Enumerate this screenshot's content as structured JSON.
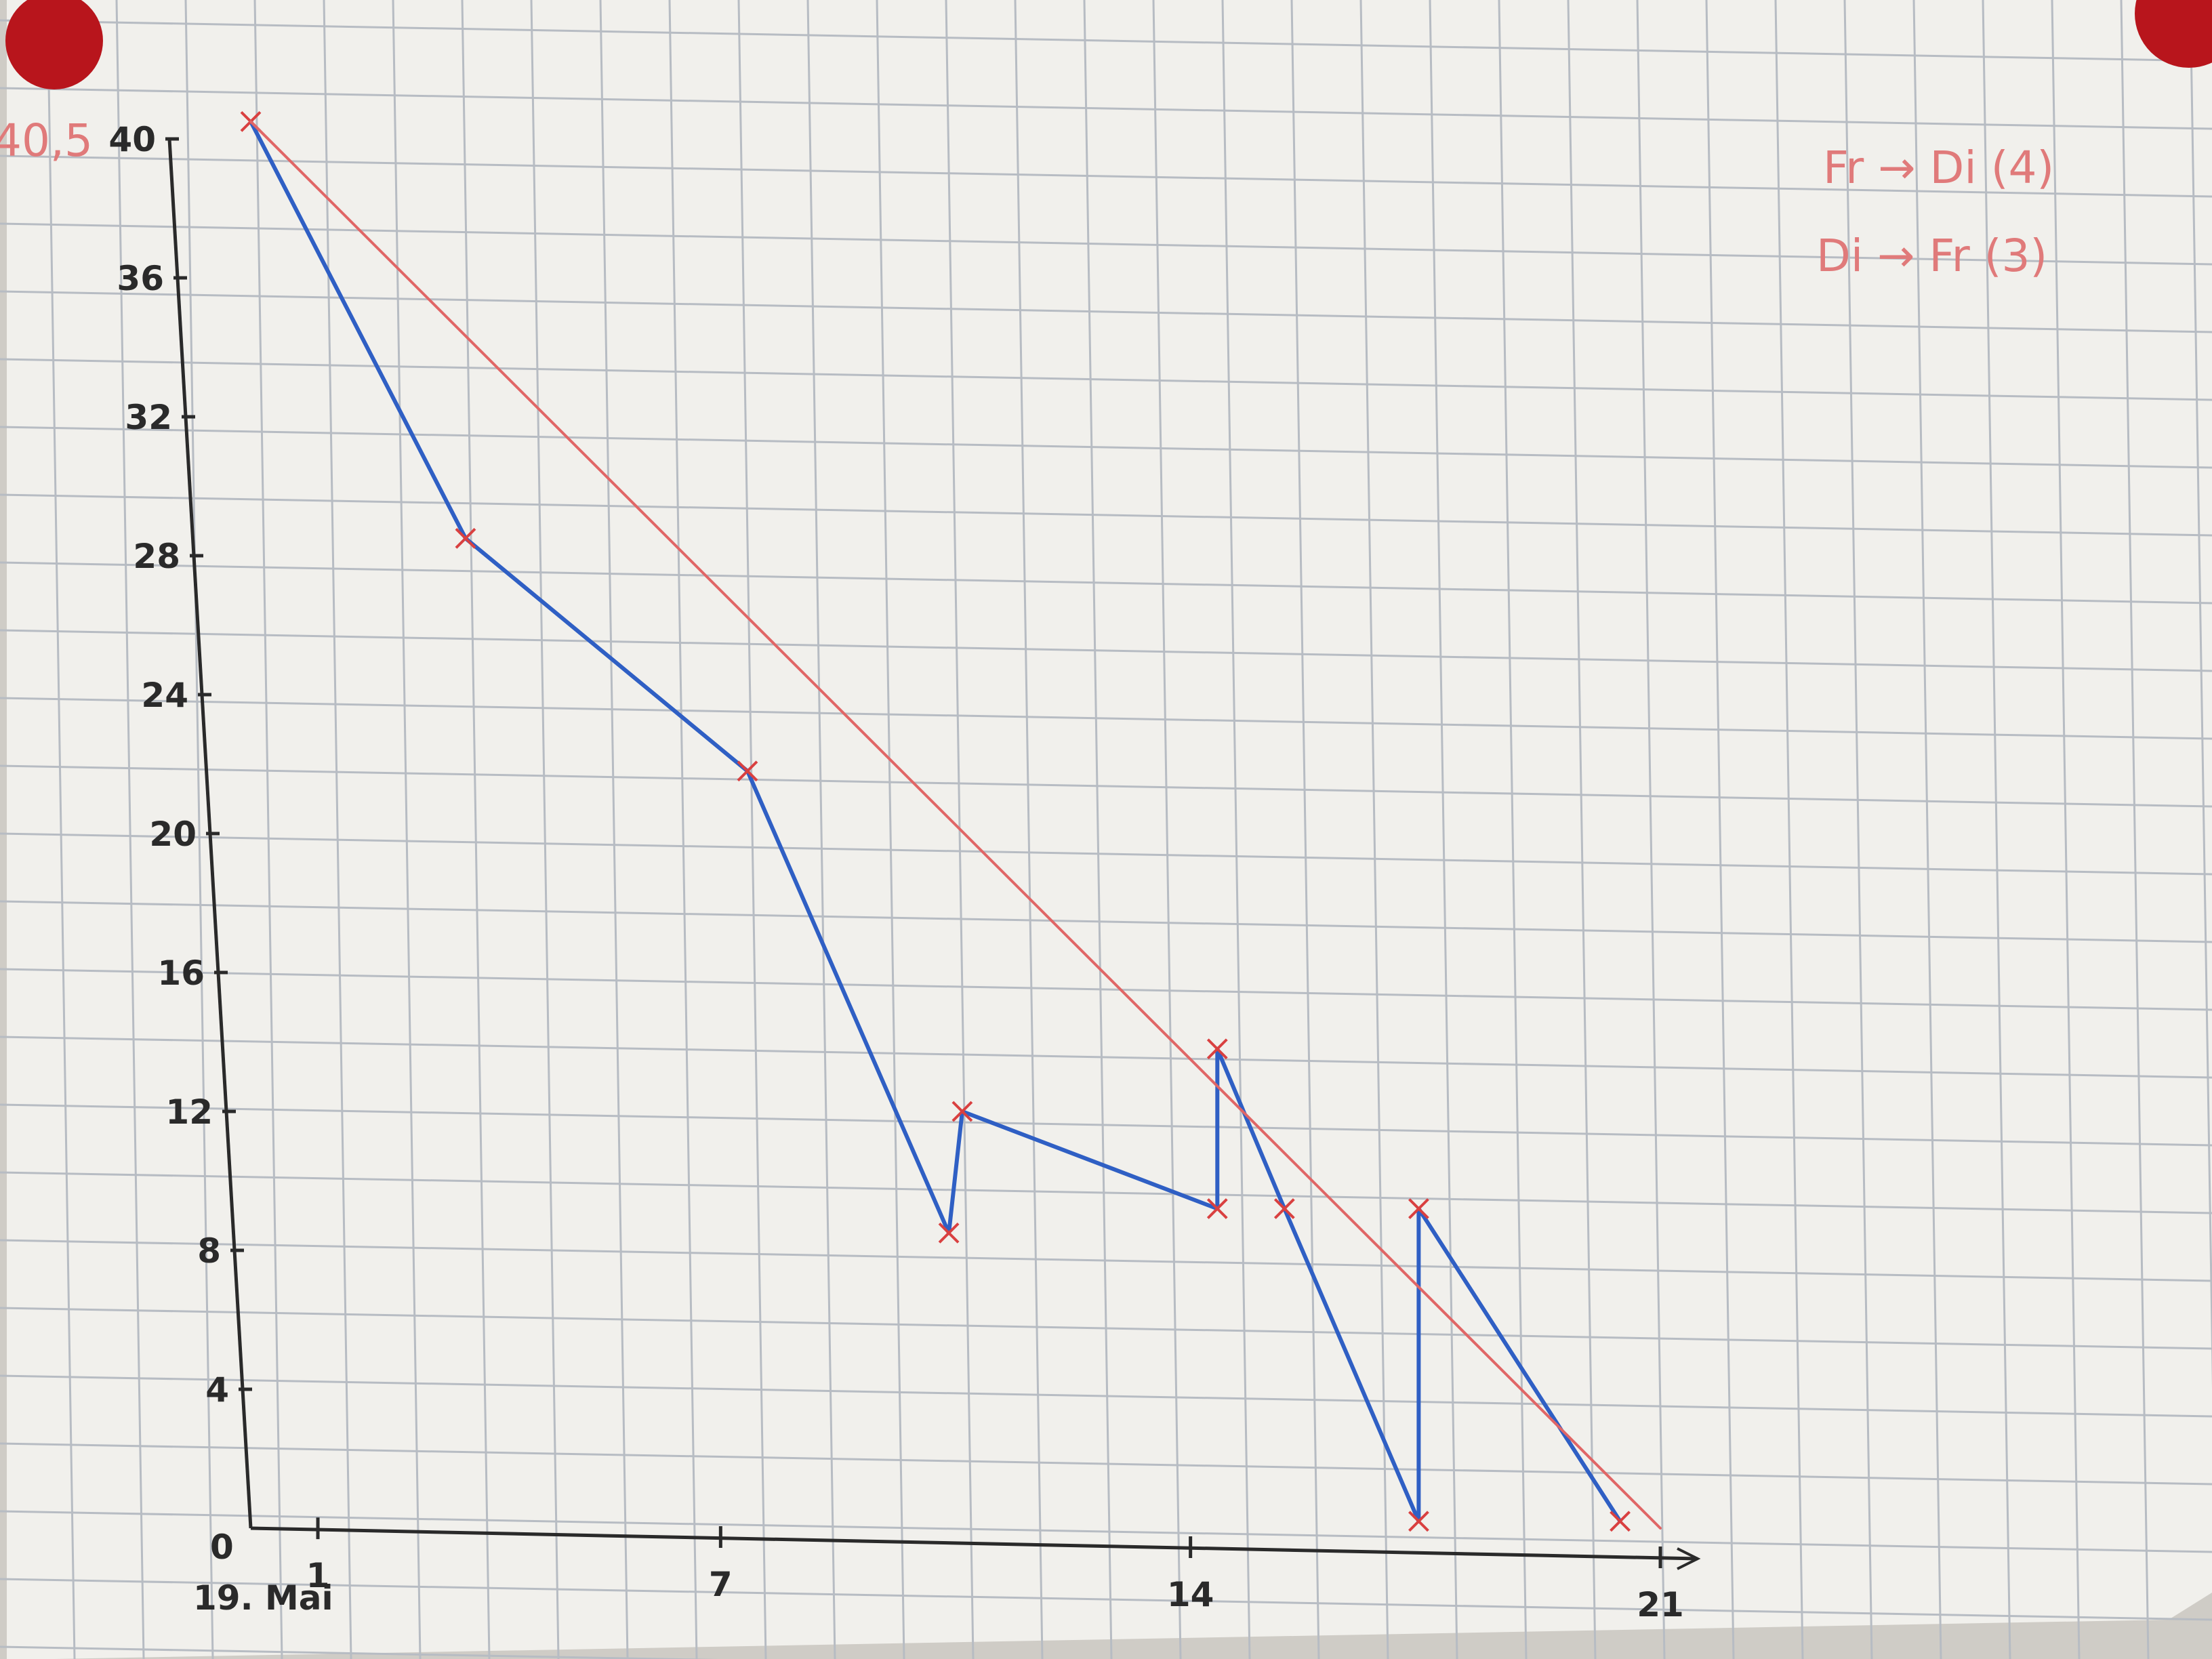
{
  "chart_data": {
    "type": "line",
    "title": "",
    "xlabel": "",
    "ylabel": "",
    "xlim": [
      0,
      21
    ],
    "ylim": [
      0,
      40
    ],
    "x_ticks": [
      "1",
      "7",
      "14",
      "21"
    ],
    "x_origin_label": "0",
    "x_start_label": "19. Mai",
    "y_ticks": [
      "4",
      "8",
      "12",
      "16",
      "20",
      "24",
      "28",
      "32",
      "36",
      "40"
    ],
    "y_origin_label": "0",
    "y_top_note": "40,5",
    "annotations": [
      "Fr → Di (4)",
      "Di → Fr (3)"
    ],
    "series": [
      {
        "color": "#2f5fc4",
        "points": [
          [
            0,
            40.5
          ],
          [
            3.2,
            28.5
          ],
          [
            7.4,
            21.8
          ],
          [
            10.4,
            8.5
          ],
          [
            10.6,
            12
          ],
          [
            14.4,
            9.2
          ],
          [
            14.4,
            13.8
          ],
          [
            15.4,
            9.2
          ],
          [
            17.4,
            0.2
          ],
          [
            17.4,
            9.2
          ],
          [
            20.4,
            0.2
          ]
        ]
      },
      {
        "color": "#e06666",
        "points": [
          [
            0,
            40.5
          ],
          [
            21,
            0
          ]
        ]
      }
    ],
    "grid": true,
    "colors": {
      "axis": "#2a2a2a",
      "actual": "#2f5fc4",
      "ideal": "#e06666",
      "marker": "#d94040",
      "grid": "#b7bcc3",
      "paper": "#f1f0ec"
    }
  }
}
